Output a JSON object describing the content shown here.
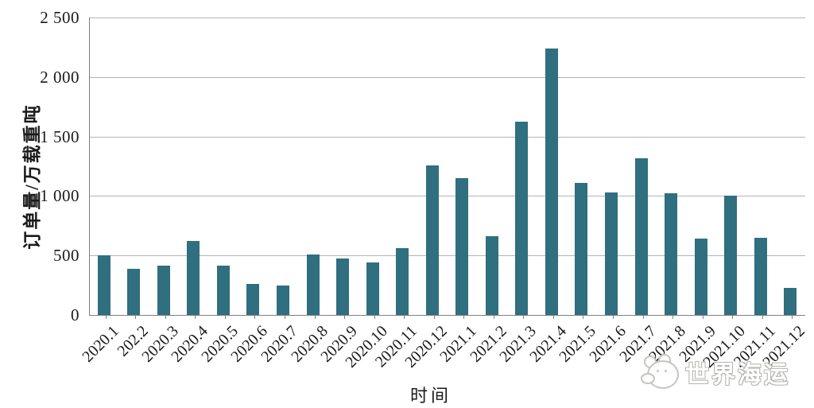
{
  "chart_data": {
    "type": "bar",
    "title": "",
    "categories": [
      "2020.1",
      "202.2",
      "2020.3",
      "2020.4",
      "2020.5",
      "2020.6",
      "2020.7",
      "2020.8",
      "2020.9",
      "2020.10",
      "2020.11",
      "2020.12",
      "2021.1",
      "2021.2",
      "2021.3",
      "2021.4",
      "2021.5",
      "2021.6",
      "2021.7",
      "2021.8",
      "2021.9",
      "2021.10",
      "2021.11",
      "2021.12"
    ],
    "values": [
      500,
      390,
      415,
      620,
      415,
      260,
      245,
      510,
      475,
      440,
      560,
      1255,
      1150,
      665,
      1625,
      2240,
      1110,
      1030,
      1315,
      1020,
      645,
      1005,
      650,
      230
    ],
    "xlabel": "时间",
    "ylabel": "订单量/万载重吨",
    "ylim": [
      0,
      2500
    ],
    "ytick_step": 500,
    "ytick_labels": [
      "0",
      "500",
      "1 000",
      "1 500",
      "2 000",
      "2 500"
    ],
    "bar_color": "#2F6F7F",
    "grid": true,
    "legend_position": "none"
  },
  "watermark": {
    "text": "世界海运",
    "logo": "mascot-face-icon"
  }
}
